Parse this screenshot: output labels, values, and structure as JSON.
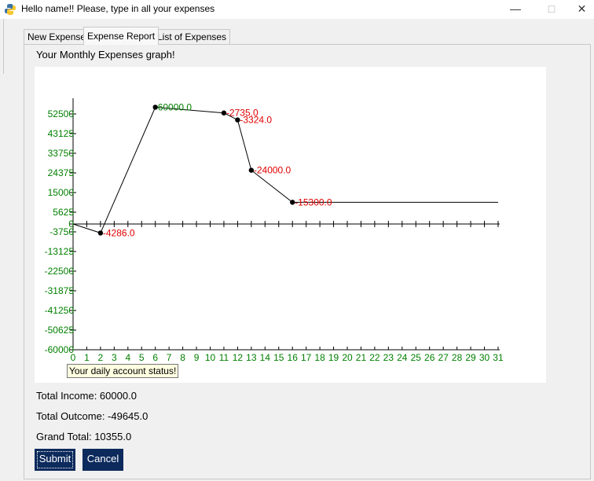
{
  "window": {
    "title": "Hello name!! Please, type in all your expenses"
  },
  "tabs": [
    {
      "label": "New Expense"
    },
    {
      "label": "Expense Report"
    },
    {
      "label": "List of Expenses"
    }
  ],
  "active_tab": "Expense Report",
  "report": {
    "graph_title": "Your Monthly Expenses graph!",
    "tooltip": "Your daily account status!",
    "total_income": "Total Income: 60000.0",
    "total_outcome": "Total Outcome: -49645.0",
    "grand_total": "Grand Total: 10355.0"
  },
  "buttons": {
    "submit": "Submit",
    "cancel": "Cancel"
  },
  "colors": {
    "axis_label": "#007f00",
    "point_label": "#e00000",
    "button_bg": "#0c2a5c"
  },
  "chart_data": {
    "type": "line",
    "xlim": [
      0,
      31
    ],
    "ylim": [
      -60000,
      60000
    ],
    "x_ticks": [
      "0",
      "1",
      "2",
      "3",
      "4",
      "5",
      "6",
      "7",
      "8",
      "9",
      "10",
      "11",
      "12",
      "13",
      "14",
      "15",
      "16",
      "17",
      "18",
      "19",
      "20",
      "21",
      "22",
      "23",
      "24",
      "25",
      "26",
      "27",
      "28",
      "29",
      "30",
      "31"
    ],
    "y_ticks": [
      {
        "value": 52500,
        "label": "52500"
      },
      {
        "value": 43125,
        "label": "43125"
      },
      {
        "value": 33750,
        "label": "33750"
      },
      {
        "value": 24375,
        "label": "24375"
      },
      {
        "value": 15000,
        "label": "15000"
      },
      {
        "value": 5625,
        "label": "5625"
      },
      {
        "value": 0,
        "label": "0"
      },
      {
        "value": -3750,
        "label": "-3750"
      },
      {
        "value": -13125,
        "label": "-13125"
      },
      {
        "value": -22500,
        "label": "-22500"
      },
      {
        "value": -31875,
        "label": "-31875"
      },
      {
        "value": -41250,
        "label": "-41250"
      },
      {
        "value": -50625,
        "label": "-50625"
      },
      {
        "value": -60000,
        "label": "-60000"
      }
    ],
    "points": [
      {
        "x": 0,
        "y": 0,
        "label": "",
        "marker": false
      },
      {
        "x": 2,
        "y": -4286,
        "label": "-4286.0",
        "color": "red",
        "marker": true
      },
      {
        "x": 6,
        "y": 55714,
        "label": "60000.0",
        "color": "green",
        "marker": true
      },
      {
        "x": 11,
        "y": 52979,
        "label": "-2735.0",
        "color": "red",
        "marker": true
      },
      {
        "x": 12,
        "y": 49655,
        "label": "-3324.0",
        "color": "red",
        "marker": true
      },
      {
        "x": 13,
        "y": 25655,
        "label": "-24000.0",
        "color": "red",
        "marker": true
      },
      {
        "x": 16,
        "y": 10355,
        "label": "-15300.0",
        "color": "red",
        "marker": true
      },
      {
        "x": 31,
        "y": 10355,
        "label": "",
        "marker": false
      }
    ]
  }
}
